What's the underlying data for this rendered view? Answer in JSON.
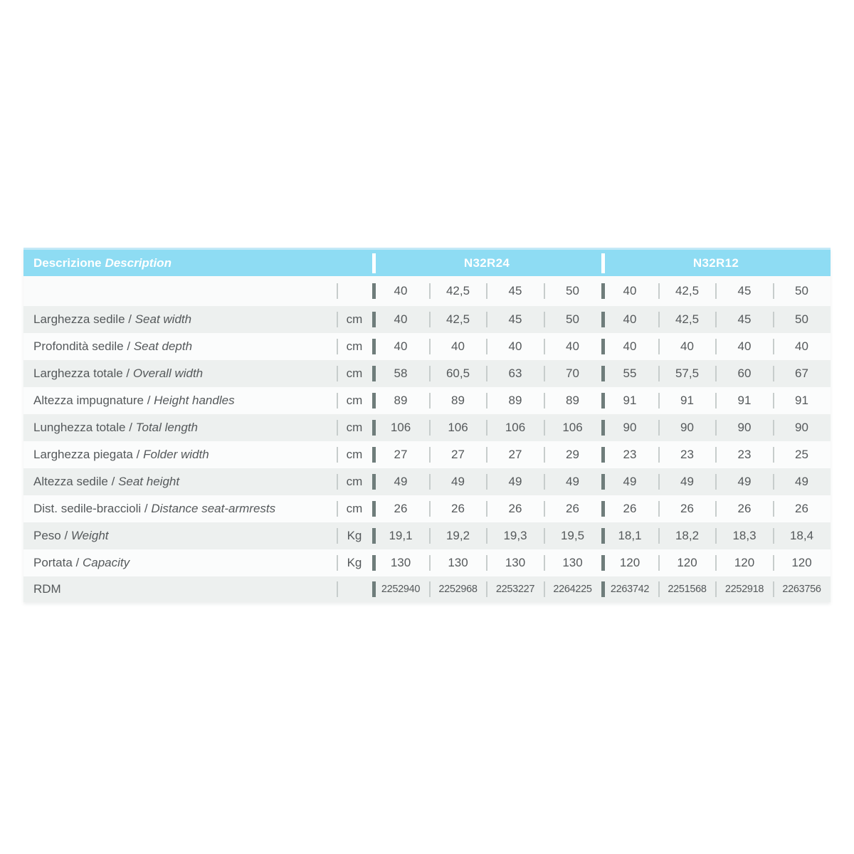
{
  "table": {
    "header": {
      "title_it": "Descrizione",
      "title_en": "Description",
      "groups": [
        {
          "name": "N32R24"
        },
        {
          "name": "N32R12"
        }
      ]
    },
    "label_separator": " / ",
    "sizes_row": {
      "values": [
        "40",
        "42,5",
        "45",
        "50",
        "40",
        "42,5",
        "45",
        "50"
      ]
    },
    "rows": [
      {
        "label_it": "Larghezza sedile",
        "label_en": "Seat width",
        "unit": "cm",
        "values": [
          "40",
          "42,5",
          "45",
          "50",
          "40",
          "42,5",
          "45",
          "50"
        ]
      },
      {
        "label_it": "Profondità sedile",
        "label_en": "Seat depth",
        "unit": "cm",
        "values": [
          "40",
          "40",
          "40",
          "40",
          "40",
          "40",
          "40",
          "40"
        ]
      },
      {
        "label_it": "Larghezza totale",
        "label_en": "Overall width",
        "unit": "cm",
        "values": [
          "58",
          "60,5",
          "63",
          "70",
          "55",
          "57,5",
          "60",
          "67"
        ]
      },
      {
        "label_it": "Altezza impugnature",
        "label_en": "Height handles",
        "unit": "cm",
        "values": [
          "89",
          "89",
          "89",
          "89",
          "91",
          "91",
          "91",
          "91"
        ]
      },
      {
        "label_it": "Lunghezza totale",
        "label_en": "Total length",
        "unit": "cm",
        "values": [
          "106",
          "106",
          "106",
          "106",
          "90",
          "90",
          "90",
          "90"
        ]
      },
      {
        "label_it": "Larghezza piegata",
        "label_en": "Folder width",
        "unit": "cm",
        "values": [
          "27",
          "27",
          "27",
          "29",
          "23",
          "23",
          "23",
          "25"
        ]
      },
      {
        "label_it": "Altezza sedile",
        "label_en": "Seat height",
        "unit": "cm",
        "values": [
          "49",
          "49",
          "49",
          "49",
          "49",
          "49",
          "49",
          "49"
        ]
      },
      {
        "label_it": "Dist. sedile-braccioli",
        "label_en": "Distance seat-armrests",
        "unit": "cm",
        "values": [
          "26",
          "26",
          "26",
          "26",
          "26",
          "26",
          "26",
          "26"
        ]
      },
      {
        "label_it": "Peso",
        "label_en": "Weight",
        "unit": "Kg",
        "values": [
          "19,1",
          "19,2",
          "19,3",
          "19,5",
          "18,1",
          "18,2",
          "18,3",
          "18,4"
        ]
      },
      {
        "label_it": "Portata",
        "label_en": "Capacity",
        "unit": "Kg",
        "values": [
          "130",
          "130",
          "130",
          "130",
          "120",
          "120",
          "120",
          "120"
        ]
      },
      {
        "label_it": "RDM",
        "label_en": "",
        "unit": "",
        "values": [
          "2252940",
          "2252968",
          "2253227",
          "2264225",
          "2263742",
          "2251568",
          "2252918",
          "2263756"
        ],
        "small": true
      }
    ],
    "colors": {
      "header_bg": "#8edcf3",
      "header_top_edge": "#c3e9f7",
      "header_text": "#ffffff",
      "row_gray": "#edf0ef",
      "row_white": "#fbfcfc",
      "sizes_row_bg": "#fafbfb",
      "text": "#55595b",
      "thick_sep": "#6f7d7b",
      "thin_sep": "#c7cdcc"
    }
  }
}
